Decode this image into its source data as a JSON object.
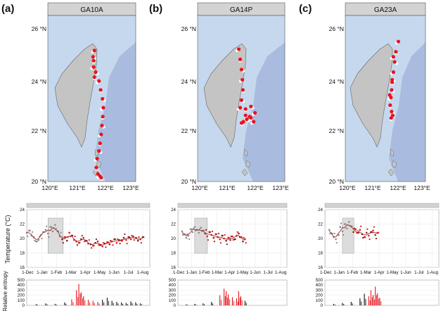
{
  "panels": [
    {
      "letter": "(a)",
      "title": "GA10A"
    },
    {
      "letter": "(b)",
      "title": "GA14P"
    },
    {
      "letter": "(c)",
      "title": "GA23A"
    }
  ],
  "map_axes": {
    "y_ticks": [
      "26 °N",
      "24 °N",
      "22 °N",
      "20 °N"
    ],
    "x_ticks": [
      "120°E",
      "121°E",
      "122°E",
      "123°E"
    ]
  },
  "ts_axes": {
    "ylabel_temp": "Temperature (°C)",
    "ylabel_entropy": "Relative entropy",
    "temp_ticks": [
      "24",
      "22",
      "20",
      "18",
      "16"
    ],
    "entropy_ticks": [
      "500",
      "400",
      "300",
      "200",
      "100",
      "0"
    ],
    "date_ticks": [
      "1-Dec",
      "1-Jan",
      "1-Feb",
      "1-Mar",
      "1-Apr",
      "1-May",
      "1-Jun",
      "1-Jul",
      "1-Aug"
    ]
  },
  "colors": {
    "ocean_deep": "#a9bcdf",
    "ocean_shallow": "#c5d8ee",
    "land": "#c4c4c4",
    "red": "#e8141c",
    "darkred": "#8b1a1a",
    "grey_pts": "#8a8a8a",
    "strip": "#d3d3d3"
  },
  "chart_data": [
    {
      "type": "scatter",
      "title": "GA10A",
      "map_track": {
        "x": [
          121.65,
          121.62,
          121.7,
          121.82,
          121.88,
          121.95,
          121.98,
          121.96,
          121.93,
          121.9,
          121.86,
          121.82,
          121.75,
          121.72,
          121.78,
          121.85,
          121.9,
          121.6,
          121.62,
          121.65
        ],
        "y": [
          25.15,
          24.75,
          24.3,
          23.95,
          23.6,
          23.25,
          22.9,
          22.55,
          22.2,
          21.85,
          21.5,
          21.2,
          20.9,
          20.55,
          20.3,
          20.22,
          20.15,
          24.9,
          24.5,
          24.1
        ]
      },
      "temperature": {
        "ylim": [
          16,
          24
        ],
        "points": [
          [
            0,
            20.8
          ],
          [
            5,
            21.1
          ],
          [
            10,
            20.4
          ],
          [
            15,
            20.2
          ],
          [
            20,
            19.6
          ],
          [
            25,
            19.8
          ],
          [
            30,
            20.5
          ],
          [
            35,
            20.9
          ],
          [
            40,
            21.2
          ],
          [
            45,
            20.7
          ],
          [
            50,
            21.6
          ],
          [
            55,
            21.0
          ],
          [
            60,
            21.9
          ],
          [
            65,
            21.0
          ],
          [
            70,
            20.3
          ],
          [
            75,
            19.9
          ],
          [
            80,
            20.2
          ],
          [
            85,
            19.7
          ],
          [
            90,
            20.8
          ],
          [
            95,
            20.4
          ],
          [
            100,
            19.8
          ],
          [
            105,
            19.6
          ],
          [
            110,
            19.4
          ],
          [
            115,
            19.9
          ],
          [
            120,
            20.1
          ],
          [
            125,
            19.7
          ],
          [
            130,
            19.3
          ],
          [
            135,
            19.2
          ],
          [
            140,
            19.0
          ],
          [
            145,
            19.4
          ],
          [
            150,
            19.6
          ],
          [
            155,
            19.1
          ],
          [
            160,
            18.9
          ],
          [
            165,
            19.3
          ],
          [
            170,
            19.5
          ],
          [
            175,
            19.2
          ],
          [
            180,
            19.6
          ],
          [
            185,
            19.9
          ],
          [
            190,
            19.4
          ],
          [
            195,
            19.8
          ],
          [
            200,
            19.7
          ],
          [
            205,
            20.1
          ],
          [
            210,
            19.8
          ],
          [
            215,
            20.2
          ],
          [
            220,
            19.9
          ],
          [
            225,
            20.3
          ],
          [
            230,
            20.1
          ],
          [
            235,
            19.7
          ],
          [
            240,
            19.9
          ],
          [
            245,
            20.2
          ]
        ],
        "shade": [
          45,
          77
        ]
      },
      "entropy": {
        "ylim": [
          0,
          500
        ],
        "bars": [
          [
            20,
            25
          ],
          [
            40,
            40
          ],
          [
            60,
            30
          ],
          [
            80,
            60
          ],
          [
            95,
            120
          ],
          [
            105,
            300
          ],
          [
            110,
            420
          ],
          [
            115,
            260
          ],
          [
            120,
            180
          ],
          [
            130,
            110
          ],
          [
            140,
            90
          ],
          [
            150,
            70
          ],
          [
            160,
            110
          ],
          [
            170,
            150
          ],
          [
            180,
            90
          ],
          [
            190,
            70
          ],
          [
            200,
            60
          ],
          [
            210,
            50
          ],
          [
            220,
            80
          ],
          [
            230,
            60
          ],
          [
            240,
            40
          ]
        ]
      }
    },
    {
      "type": "scatter",
      "title": "GA14P",
      "map_track": {
        "x": [
          121.45,
          121.5,
          121.55,
          121.58,
          121.6,
          121.55,
          121.5,
          121.7,
          121.9,
          122.05,
          121.9,
          121.75,
          121.62,
          121.55,
          121.85,
          122.0,
          121.7
        ],
        "y": [
          25.2,
          24.8,
          24.4,
          24.0,
          23.6,
          23.2,
          22.9,
          22.85,
          22.95,
          22.7,
          22.5,
          22.45,
          22.35,
          22.3,
          22.55,
          22.35,
          22.6
        ]
      },
      "temperature": {
        "ylim": [
          16,
          24
        ],
        "points": [
          [
            10,
            21.0
          ],
          [
            15,
            20.6
          ],
          [
            20,
            20.1
          ],
          [
            25,
            20.4
          ],
          [
            30,
            21.3
          ],
          [
            35,
            20.9
          ],
          [
            40,
            21.6
          ],
          [
            45,
            21.2
          ],
          [
            50,
            20.8
          ],
          [
            55,
            21.5
          ],
          [
            60,
            21.1
          ],
          [
            65,
            20.7
          ],
          [
            70,
            20.3
          ],
          [
            75,
            20.9
          ],
          [
            80,
            20.5
          ],
          [
            85,
            20.1
          ],
          [
            90,
            20.6
          ],
          [
            95,
            20.2
          ],
          [
            100,
            19.9
          ],
          [
            105,
            20.4
          ],
          [
            110,
            20.0
          ],
          [
            115,
            19.7
          ],
          [
            120,
            20.1
          ],
          [
            125,
            19.8
          ],
          [
            130,
            20.3
          ],
          [
            135,
            19.9
          ],
          [
            140,
            20.4
          ],
          [
            145,
            20.7
          ],
          [
            150,
            20.2
          ],
          [
            155,
            19.6
          ],
          [
            160,
            19.9
          ]
        ],
        "shade": [
          40,
          70
        ]
      },
      "entropy": {
        "ylim": [
          0,
          500
        ],
        "bars": [
          [
            20,
            20
          ],
          [
            40,
            30
          ],
          [
            60,
            40
          ],
          [
            80,
            70
          ],
          [
            100,
            200
          ],
          [
            110,
            330
          ],
          [
            115,
            280
          ],
          [
            120,
            220
          ],
          [
            130,
            160
          ],
          [
            140,
            140
          ],
          [
            145,
            280
          ],
          [
            150,
            180
          ],
          [
            160,
            90
          ]
        ]
      }
    },
    {
      "type": "scatter",
      "title": "GA23A",
      "map_track": {
        "x": [
          122.05,
          121.95,
          121.9,
          121.85,
          121.8,
          121.78,
          121.75,
          121.72,
          121.78,
          121.82,
          121.76,
          121.8,
          121.85,
          121.7
        ],
        "y": [
          25.5,
          25.1,
          24.7,
          24.3,
          23.9,
          23.6,
          23.3,
          23.0,
          22.75,
          22.6,
          22.5,
          24.0,
          24.9,
          23.4
        ]
      },
      "temperature": {
        "ylim": [
          16,
          24
        ],
        "points": [
          [
            10,
            21.2
          ],
          [
            15,
            20.7
          ],
          [
            20,
            20.2
          ],
          [
            25,
            19.9
          ],
          [
            30,
            20.5
          ],
          [
            35,
            21.6
          ],
          [
            40,
            21.0
          ],
          [
            45,
            22.0
          ],
          [
            50,
            21.4
          ],
          [
            55,
            22.3
          ],
          [
            60,
            21.7
          ],
          [
            65,
            20.9
          ],
          [
            70,
            21.3
          ],
          [
            75,
            20.8
          ],
          [
            80,
            21.2
          ],
          [
            85,
            20.6
          ],
          [
            90,
            20.2
          ],
          [
            95,
            20.8
          ],
          [
            100,
            20.4
          ],
          [
            105,
            20.9
          ],
          [
            110,
            21.1
          ],
          [
            115,
            20.5
          ],
          [
            120,
            20.8
          ]
        ],
        "shade": [
          40,
          66
        ]
      },
      "entropy": {
        "ylim": [
          0,
          500
        ],
        "bars": [
          [
            20,
            30
          ],
          [
            40,
            50
          ],
          [
            60,
            70
          ],
          [
            80,
            140
          ],
          [
            90,
            230
          ],
          [
            100,
            180
          ],
          [
            105,
            300
          ],
          [
            110,
            210
          ],
          [
            115,
            370
          ],
          [
            120,
            240
          ],
          [
            125,
            150
          ]
        ]
      }
    }
  ]
}
